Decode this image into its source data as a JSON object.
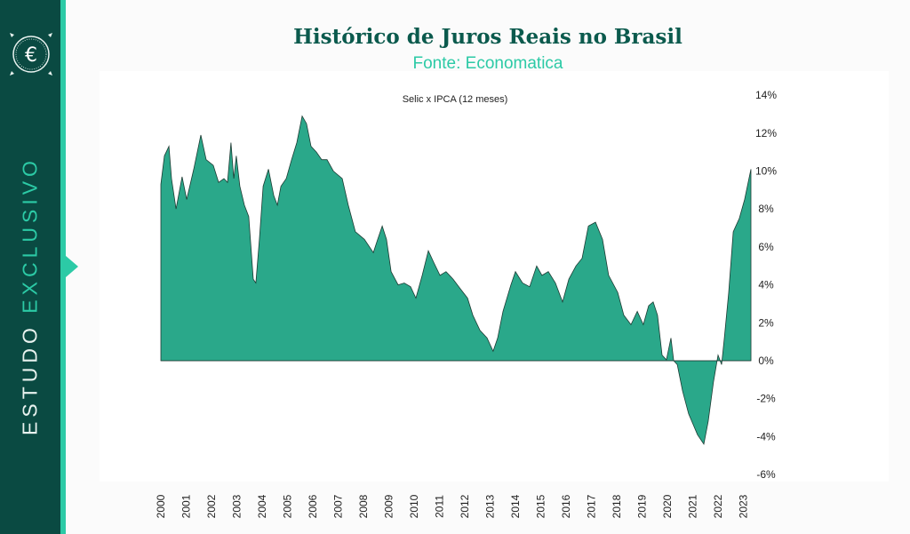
{
  "header": {
    "title": "Histórico de Juros Reais no Brasil",
    "subtitle": "Fonte: Economatica"
  },
  "sidebar": {
    "label_part1": "ESTUDO",
    "label_part2": "EXCLUSIVO",
    "logo_icon": "euro-coin-icon"
  },
  "colors": {
    "sidebar": "#0a4a42",
    "accent": "#2ccaa6",
    "fill": "#2aa88a",
    "title": "#0b5a4d"
  },
  "chart_data": {
    "type": "area",
    "title": "Selic x IPCA (12 meses)",
    "xlabel": "",
    "ylabel": "",
    "ylim": [
      -6,
      14
    ],
    "xlim": [
      2000,
      2023.3
    ],
    "y_axis_position": "right",
    "grid": false,
    "x_ticks": [
      "2000",
      "2001",
      "2002",
      "2003",
      "2004",
      "2005",
      "2006",
      "2007",
      "2008",
      "2009",
      "2010",
      "2011",
      "2012",
      "2013",
      "2014",
      "2015",
      "2016",
      "2017",
      "2018",
      "2019",
      "2020",
      "2021",
      "2022",
      "2023"
    ],
    "y_ticks": [
      "14%",
      "12%",
      "10%",
      "8%",
      "6%",
      "4%",
      "2%",
      "0%",
      "-2%",
      "-4%",
      "-6%"
    ],
    "y_tick_values": [
      14,
      12,
      10,
      8,
      6,
      4,
      2,
      0,
      -2,
      -4,
      -6
    ],
    "x": [
      2000.0,
      2000.14,
      2000.32,
      2000.42,
      2000.6,
      2000.84,
      2001.02,
      2001.3,
      2001.58,
      2001.79,
      2002.07,
      2002.28,
      2002.49,
      2002.63,
      2002.77,
      2002.88,
      2002.98,
      2003.12,
      2003.3,
      2003.47,
      2003.65,
      2003.75,
      2003.89,
      2004.04,
      2004.25,
      2004.46,
      2004.6,
      2004.74,
      2004.95,
      2005.16,
      2005.37,
      2005.58,
      2005.75,
      2005.93,
      2006.14,
      2006.35,
      2006.56,
      2006.81,
      2007.16,
      2007.4,
      2007.68,
      2008.04,
      2008.39,
      2008.56,
      2008.74,
      2008.91,
      2009.09,
      2009.37,
      2009.61,
      2009.86,
      2010.07,
      2010.32,
      2010.56,
      2010.77,
      2011.02,
      2011.26,
      2011.54,
      2011.82,
      2012.11,
      2012.32,
      2012.6,
      2012.88,
      2013.12,
      2013.3,
      2013.51,
      2013.82,
      2014.0,
      2014.28,
      2014.56,
      2014.84,
      2015.05,
      2015.3,
      2015.58,
      2015.86,
      2016.11,
      2016.39,
      2016.63,
      2016.88,
      2017.16,
      2017.44,
      2017.68,
      2018.04,
      2018.28,
      2018.56,
      2018.81,
      2019.05,
      2019.26,
      2019.44,
      2019.61,
      2019.79,
      2019.96,
      2020.14,
      2020.25,
      2020.39,
      2020.6,
      2020.84,
      2021.19,
      2021.44,
      2021.61,
      2021.82,
      2022.0,
      2022.14,
      2022.25,
      2022.42,
      2022.6,
      2022.84,
      2023.05,
      2023.3
    ],
    "values": [
      9.3,
      10.8,
      11.3,
      9.6,
      8.0,
      9.7,
      8.5,
      10.1,
      11.9,
      10.6,
      10.3,
      9.4,
      9.6,
      9.4,
      11.5,
      9.6,
      10.8,
      9.2,
      8.2,
      7.6,
      4.3,
      4.1,
      6.4,
      9.2,
      10.1,
      8.7,
      8.2,
      9.2,
      9.6,
      10.6,
      11.5,
      12.9,
      12.5,
      11.3,
      11.0,
      10.6,
      10.6,
      10.0,
      9.6,
      8.2,
      6.8,
      6.4,
      5.7,
      6.4,
      7.1,
      6.4,
      4.7,
      4.0,
      4.1,
      3.9,
      3.3,
      4.5,
      5.8,
      5.2,
      4.5,
      4.7,
      4.3,
      3.8,
      3.3,
      2.4,
      1.6,
      1.2,
      0.5,
      1.2,
      2.6,
      4.0,
      4.7,
      4.1,
      3.9,
      5.0,
      4.5,
      4.7,
      4.1,
      3.1,
      4.3,
      5.0,
      5.4,
      7.1,
      7.3,
      6.4,
      4.5,
      3.6,
      2.4,
      1.9,
      2.6,
      1.9,
      2.9,
      3.1,
      2.4,
      0.3,
      0.05,
      1.2,
      0.0,
      -0.2,
      -1.6,
      -2.8,
      -3.9,
      -4.4,
      -3.2,
      -1.1,
      0.3,
      -0.2,
      1.2,
      3.6,
      6.8,
      7.5,
      8.5,
      10.1
    ]
  }
}
